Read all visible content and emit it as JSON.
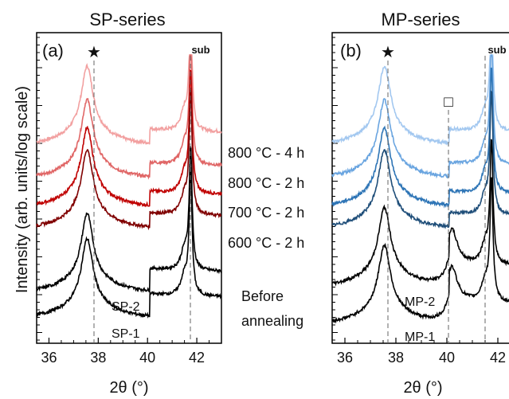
{
  "chart_data": [
    {
      "type": "line",
      "panel_label": "(a)",
      "title": "SP-series",
      "xlabel": "2θ (°)",
      "ylabel": "Intensity (arb. units/log scale)",
      "yscale": "log",
      "xlim": [
        35.5,
        43
      ],
      "xticks": [
        36,
        38,
        40,
        42
      ],
      "grid": false,
      "markers": [
        {
          "symbol": "★",
          "x": 37.6
        },
        {
          "symbol": "sub",
          "x": 41.7
        }
      ],
      "labels": [
        "SP-2",
        "SP-1"
      ],
      "series": [
        {
          "name": "800 °C - 4 h",
          "color": "#f2a0a0"
        },
        {
          "name": "800 °C - 2 h",
          "color": "#e06666"
        },
        {
          "name": "700 °C - 2 h",
          "color": "#c00000"
        },
        {
          "name": "600 °C - 2 h",
          "color": "#800000"
        },
        {
          "name": "SP-2",
          "color": "#000000"
        },
        {
          "name": "SP-1",
          "color": "#000000"
        }
      ]
    },
    {
      "type": "line",
      "panel_label": "(b)",
      "title": "MP-series",
      "xlabel": "2θ (°)",
      "ylabel": "",
      "yscale": "log",
      "xlim": [
        35.5,
        43
      ],
      "xticks": [
        36,
        38,
        40,
        42
      ],
      "grid": false,
      "markers": [
        {
          "symbol": "★",
          "x": 37.6
        },
        {
          "symbol": "□",
          "x": 40.2
        },
        {
          "symbol": "sub",
          "x": 41.7
        }
      ],
      "labels": [
        "MP-2",
        "MP-1"
      ],
      "series": [
        {
          "name": "800 °C - 4 h",
          "color": "#a3c8f0"
        },
        {
          "name": "800 °C - 2 h",
          "color": "#6aa5e0"
        },
        {
          "name": "700 °C - 2 h",
          "color": "#2e75b6"
        },
        {
          "name": "600 °C - 2 h",
          "color": "#1f4e79"
        },
        {
          "name": "MP-2",
          "color": "#000000"
        },
        {
          "name": "MP-1",
          "color": "#000000"
        }
      ]
    }
  ],
  "middle_labels": [
    "800 °C - 4 h",
    "800 °C - 2 h",
    "700 °C - 2 h",
    "600 °C - 2 h"
  ],
  "before_label": [
    "Before",
    "annealing"
  ]
}
